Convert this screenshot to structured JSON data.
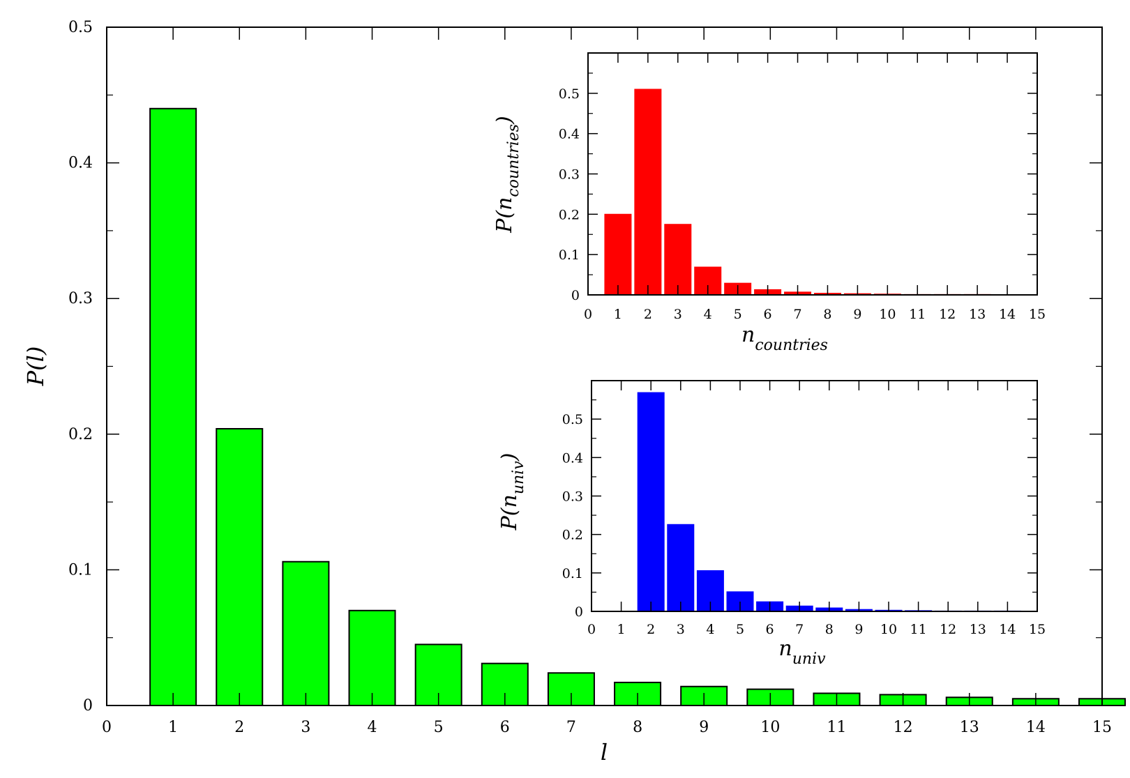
{
  "chart_data": [
    {
      "type": "bar",
      "role": "main",
      "x": [
        1,
        2,
        3,
        4,
        5,
        6,
        7,
        8,
        9,
        10,
        11,
        12,
        13,
        14,
        15
      ],
      "values": [
        0.44,
        0.204,
        0.106,
        0.07,
        0.045,
        0.031,
        0.024,
        0.017,
        0.014,
        0.012,
        0.009,
        0.008,
        0.006,
        0.005,
        0.005
      ],
      "xlabel": "l",
      "ylabel": "P(l)",
      "xlim": [
        0,
        15
      ],
      "ylim": [
        0,
        0.5
      ],
      "xticks": [
        "0",
        "1",
        "2",
        "3",
        "4",
        "5",
        "6",
        "7",
        "8",
        "9",
        "10",
        "11",
        "12",
        "13",
        "14",
        "15"
      ],
      "yticks": [
        "0",
        "0.1",
        "0.2",
        "0.3",
        "0.4",
        "0.5"
      ],
      "color": "#00ff00",
      "grid": false
    },
    {
      "type": "bar",
      "role": "inset-top",
      "x": [
        1,
        2,
        3,
        4,
        5,
        6,
        7,
        8,
        9,
        10,
        11,
        12,
        13
      ],
      "values": [
        0.201,
        0.511,
        0.176,
        0.07,
        0.03,
        0.014,
        0.008,
        0.005,
        0.004,
        0.003,
        0.002,
        0.002,
        0.002
      ],
      "xlabel": "n",
      "xlabel_sub": "countries",
      "ylabel": "P(n",
      "ylabel_sub": "countries",
      "ylabel_close": ")",
      "xlim": [
        0,
        15
      ],
      "ylim": [
        0,
        0.6
      ],
      "xticks": [
        "0",
        "1",
        "2",
        "3",
        "4",
        "5",
        "6",
        "7",
        "8",
        "9",
        "10",
        "11",
        "12",
        "13",
        "14",
        "15"
      ],
      "yticks": [
        "0",
        "0.1",
        "0.2",
        "0.3",
        "0.4",
        "0.5"
      ],
      "color": "#ff0000",
      "grid": false
    },
    {
      "type": "bar",
      "role": "inset-bottom",
      "x": [
        2,
        3,
        4,
        5,
        6,
        7,
        8,
        9,
        10,
        11,
        12,
        13,
        14
      ],
      "values": [
        0.57,
        0.227,
        0.107,
        0.052,
        0.026,
        0.015,
        0.01,
        0.006,
        0.004,
        0.003,
        0.002,
        0.002,
        0.002
      ],
      "xlabel": "n",
      "xlabel_sub": "univ",
      "ylabel": "P(n",
      "ylabel_sub": "univ",
      "ylabel_close": ")",
      "xlim": [
        0,
        15
      ],
      "ylim": [
        0,
        0.6
      ],
      "xticks": [
        "0",
        "1",
        "2",
        "3",
        "4",
        "5",
        "6",
        "7",
        "8",
        "9",
        "10",
        "11",
        "12",
        "13",
        "14",
        "15"
      ],
      "yticks": [
        "0",
        "0.1",
        "0.2",
        "0.3",
        "0.4",
        "0.5"
      ],
      "color": "#0000ff",
      "grid": false
    }
  ]
}
